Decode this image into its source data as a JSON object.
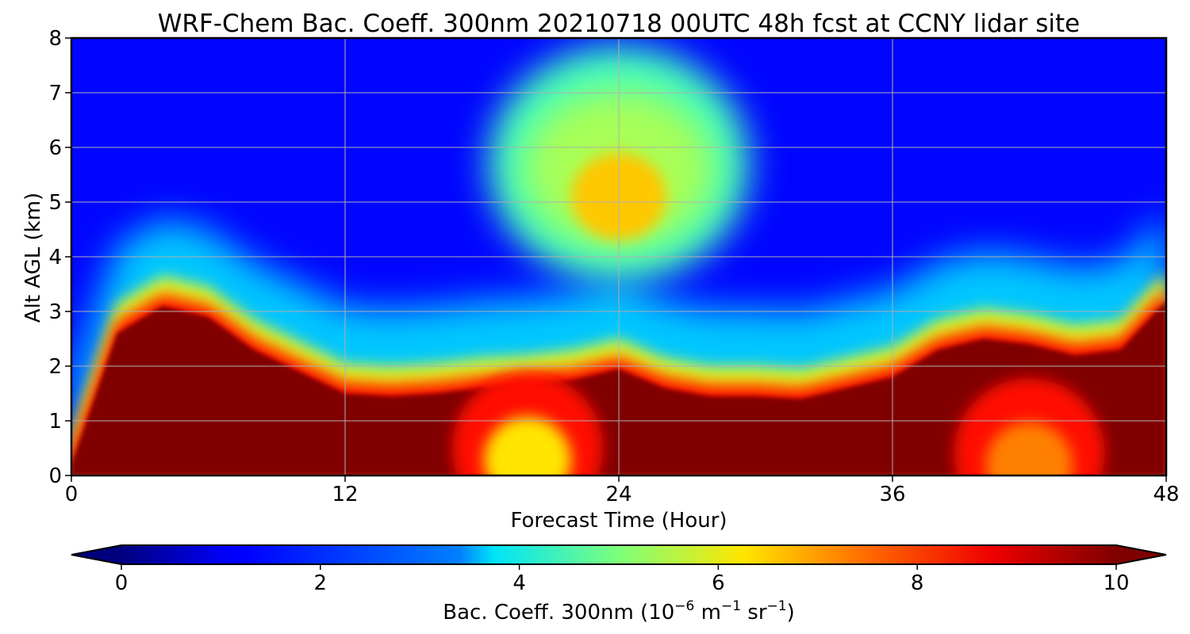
{
  "chart_data": {
    "type": "heatmap",
    "title": "WRF-Chem Bac. Coeff. 300nm  20210718 00UTC 48h fcst at CCNY lidar site",
    "xlabel": "Forecast Time (Hour)",
    "ylabel": "Alt AGL (km)",
    "xlim": [
      0,
      48
    ],
    "ylim": [
      0,
      8
    ],
    "x_ticks": [
      "0",
      "12",
      "24",
      "36",
      "48"
    ],
    "y_ticks": [
      "0",
      "1",
      "2",
      "3",
      "4",
      "5",
      "6",
      "7",
      "8"
    ],
    "grid": true,
    "colormap": "jet",
    "colorbar": {
      "label": "Bac. Coeff. 300nm  (10",
      "label_exp1": "−6",
      "label_mid": " m",
      "label_exp2": "−1",
      "label_mid2": " sr",
      "label_exp3": "−1",
      "label_end": ")",
      "range": [
        0,
        10
      ],
      "extend": "both",
      "ticks": [
        "0",
        "2",
        "4",
        "6",
        "8",
        "10"
      ]
    },
    "x": [
      0,
      2,
      4,
      6,
      8,
      10,
      12,
      14,
      16,
      18,
      20,
      22,
      24,
      26,
      28,
      30,
      32,
      34,
      36,
      38,
      40,
      42,
      44,
      46,
      48
    ],
    "boundary_layer_top_km": [
      0.2,
      2.6,
      3.1,
      2.9,
      2.3,
      1.9,
      1.5,
      1.45,
      1.5,
      1.6,
      1.65,
      1.75,
      1.95,
      1.6,
      1.45,
      1.45,
      1.4,
      1.6,
      1.8,
      2.3,
      2.5,
      2.4,
      2.2,
      2.3,
      3.2
    ],
    "upper_aerosol_layer": {
      "center_hour": 24,
      "center_km": 5.1,
      "peak_value": 6.8
    },
    "surface_moderate_patches": [
      {
        "center_hour": 20,
        "center_km": 0.5,
        "value": 6.5
      },
      {
        "center_hour": 42,
        "center_km": 0.4,
        "value": 7.5
      }
    ],
    "background_upper_value": 1.3,
    "free_troposphere_value": 3.2
  }
}
